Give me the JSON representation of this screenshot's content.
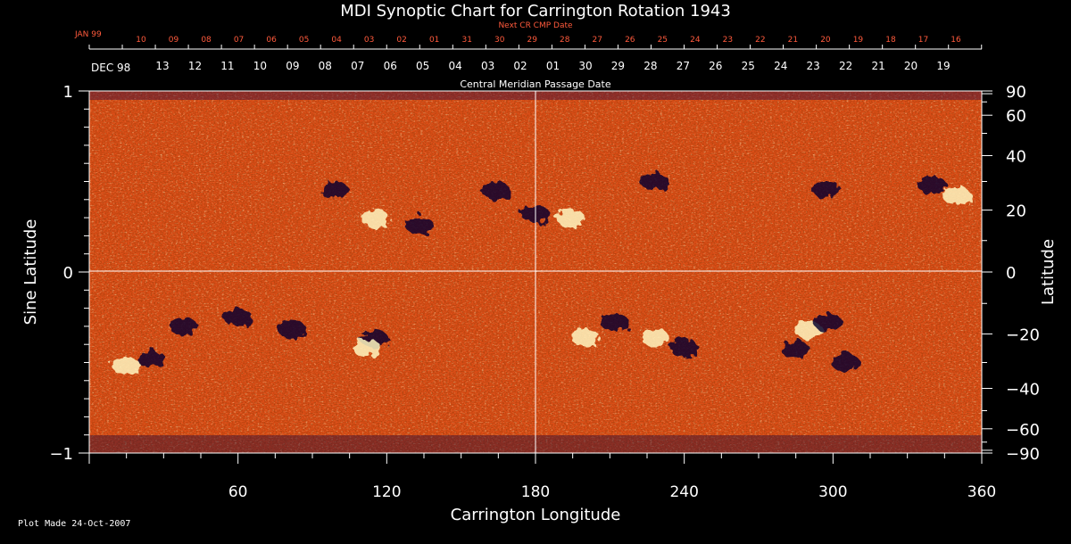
{
  "chart_data": {
    "type": "heatmap",
    "title": "MDI Synoptic Chart for Carrington Rotation 1943",
    "top_red_label": "Next CR CMP Date",
    "top_red_month": "JAN 99",
    "top_red_ticks": [
      "10",
      "09",
      "08",
      "07",
      "06",
      "05",
      "04",
      "03",
      "02",
      "01",
      "31",
      "30",
      "29",
      "28",
      "27",
      "26",
      "25",
      "24",
      "23",
      "22",
      "21",
      "20",
      "19",
      "18",
      "17",
      "16"
    ],
    "top_white_month": "DEC 98",
    "top_white_ticks": [
      "13",
      "12",
      "11",
      "10",
      "09",
      "08",
      "07",
      "06",
      "05",
      "04",
      "03",
      "02",
      "01",
      "30",
      "29",
      "28",
      "27",
      "26",
      "25",
      "24",
      "23",
      "22",
      "21",
      "20",
      "19"
    ],
    "top_axis_label": "Central Meridian Passage Date",
    "xlabel": "Carrington Longitude",
    "xlim": [
      0,
      360
    ],
    "xticks": [
      "60",
      "120",
      "180",
      "240",
      "300",
      "360"
    ],
    "ylabel_left": "Sine Latitude",
    "ylim": [
      -1,
      1
    ],
    "yticks_left": [
      "1",
      "0",
      "−1"
    ],
    "ylabel_right": "Latitude",
    "yticks_right": [
      "90",
      "60",
      "40",
      "20",
      "0",
      "−20",
      "−40",
      "−60",
      "−90"
    ],
    "grid": "lines at longitude 180 and sine latitude 0",
    "colors": {
      "background_field": "#e8501a",
      "positive": "#fff6c0",
      "negative": "#0a0630",
      "grid": "#ffffff",
      "date_red": "#ff5a3c"
    },
    "features": [
      {
        "polarity": "negative",
        "lon": 99,
        "sinlat": 0.45
      },
      {
        "polarity": "positive",
        "lon": 115,
        "sinlat": 0.3
      },
      {
        "polarity": "negative",
        "lon": 133,
        "sinlat": 0.26
      },
      {
        "polarity": "negative",
        "lon": 164,
        "sinlat": 0.45
      },
      {
        "polarity": "negative",
        "lon": 180,
        "sinlat": 0.32
      },
      {
        "polarity": "positive",
        "lon": 194,
        "sinlat": 0.3
      },
      {
        "polarity": "negative",
        "lon": 228,
        "sinlat": 0.5
      },
      {
        "polarity": "negative",
        "lon": 297,
        "sinlat": 0.46
      },
      {
        "polarity": "negative",
        "lon": 340,
        "sinlat": 0.48
      },
      {
        "polarity": "positive",
        "lon": 350,
        "sinlat": 0.42
      },
      {
        "polarity": "negative",
        "lon": 25,
        "sinlat": -0.48
      },
      {
        "polarity": "positive",
        "lon": 15,
        "sinlat": -0.52
      },
      {
        "polarity": "negative",
        "lon": 38,
        "sinlat": -0.3
      },
      {
        "polarity": "negative",
        "lon": 60,
        "sinlat": -0.25
      },
      {
        "polarity": "negative",
        "lon": 82,
        "sinlat": -0.32
      },
      {
        "polarity": "negative",
        "lon": 115,
        "sinlat": -0.37
      },
      {
        "polarity": "positive",
        "lon": 112,
        "sinlat": -0.42
      },
      {
        "polarity": "negative",
        "lon": 212,
        "sinlat": -0.28
      },
      {
        "polarity": "positive",
        "lon": 200,
        "sinlat": -0.36
      },
      {
        "polarity": "positive",
        "lon": 228,
        "sinlat": -0.36
      },
      {
        "polarity": "negative",
        "lon": 240,
        "sinlat": -0.42
      },
      {
        "polarity": "negative",
        "lon": 285,
        "sinlat": -0.43
      },
      {
        "polarity": "positive",
        "lon": 290,
        "sinlat": -0.32
      },
      {
        "polarity": "negative",
        "lon": 298,
        "sinlat": -0.28
      },
      {
        "polarity": "negative",
        "lon": 305,
        "sinlat": -0.5
      }
    ]
  },
  "footer": {
    "note": "Plot Made 24-Oct-2007"
  }
}
